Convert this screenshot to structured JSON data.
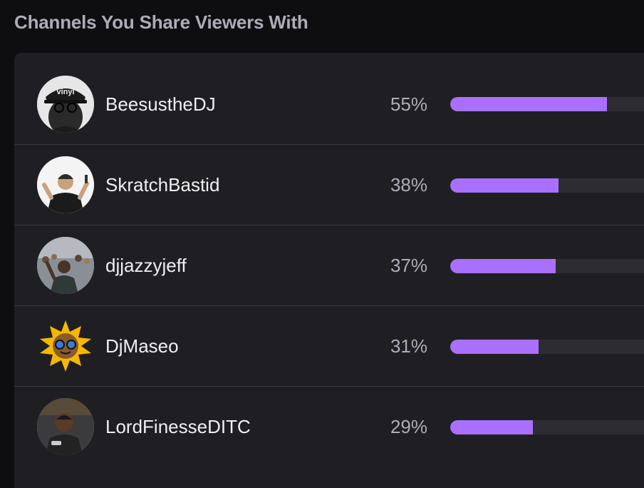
{
  "title": "Channels You Share Viewers With",
  "accent_color": "#a970ff",
  "channels": [
    {
      "name": "BeesustheDJ",
      "percent_label": "55%",
      "fill_fraction": 0.55,
      "avatar_icon": "avatar-beesusthedj",
      "avatar_text": "vinyl"
    },
    {
      "name": "SkratchBastid",
      "percent_label": "38%",
      "fill_fraction": 0.38,
      "avatar_icon": "avatar-skratchbastid"
    },
    {
      "name": "djjazzyjeff",
      "percent_label": "37%",
      "fill_fraction": 0.37,
      "avatar_icon": "avatar-djjazzyjeff"
    },
    {
      "name": "DjMaseo",
      "percent_label": "31%",
      "fill_fraction": 0.31,
      "avatar_icon": "avatar-djmaseo-sun"
    },
    {
      "name": "LordFinesseDITC",
      "percent_label": "29%",
      "fill_fraction": 0.29,
      "avatar_icon": "avatar-lordfinesseditc"
    }
  ]
}
